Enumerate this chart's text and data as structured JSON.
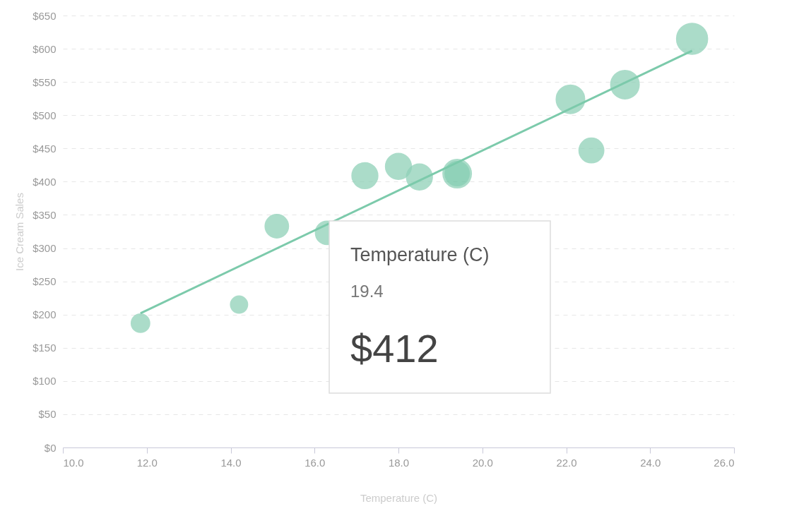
{
  "chart_data": {
    "type": "bubble",
    "xlabel": "Temperature (C)",
    "ylabel": "Ice Cream Sales",
    "xlim": [
      10,
      26
    ],
    "xticks": [
      {
        "value": 10,
        "label": "10.0"
      },
      {
        "value": 12,
        "label": "12.0"
      },
      {
        "value": 14,
        "label": "14.0"
      },
      {
        "value": 16,
        "label": "16.0"
      },
      {
        "value": 18,
        "label": "18.0"
      },
      {
        "value": 20,
        "label": "20.0"
      },
      {
        "value": 22,
        "label": "22.0"
      },
      {
        "value": 24,
        "label": "24.0"
      },
      {
        "value": 26,
        "label": "26.0"
      }
    ],
    "ylim": [
      0,
      650
    ],
    "yticks": [
      {
        "value": 0,
        "label": "$0"
      },
      {
        "value": 50,
        "label": "$50"
      },
      {
        "value": 100,
        "label": "$100"
      },
      {
        "value": 150,
        "label": "$150"
      },
      {
        "value": 200,
        "label": "$200"
      },
      {
        "value": 250,
        "label": "$250"
      },
      {
        "value": 300,
        "label": "$300"
      },
      {
        "value": 350,
        "label": "$350"
      },
      {
        "value": 400,
        "label": "$400"
      },
      {
        "value": 450,
        "label": "$450"
      },
      {
        "value": 500,
        "label": "$500"
      },
      {
        "value": 550,
        "label": "$550"
      },
      {
        "value": 600,
        "label": "$600"
      },
      {
        "value": 650,
        "label": "$650"
      }
    ],
    "grid": "y",
    "series": [
      {
        "color": "#8fd1b8",
        "x": [
          11.85,
          14.2,
          15.1,
          16.3,
          17.2,
          18.0,
          18.5,
          19.4,
          22.1,
          22.6,
          23.4,
          25.0
        ],
        "values": [
          187,
          215,
          333,
          323,
          409,
          423,
          407,
          412,
          524,
          447,
          546,
          615
        ],
        "sizes": [
          0.34,
          0.29,
          0.56,
          0.56,
          0.69,
          0.69,
          0.69,
          0.84,
          0.84,
          0.63,
          0.84,
          1
        ],
        "colors": [
          "#8fd1b8",
          "#8fd1b8",
          "#8fd1b8",
          "#8fd1b8",
          "#8fd1b8",
          "#8fd1b8",
          "#8fd1b8",
          "#6cc3a2",
          "#8fd1b8",
          "#8fd1b8",
          "#8fd1b8",
          "#8fd1b8"
        ]
      },
      {
        "type": "line",
        "color": "#7ccaab",
        "x": [
          11.85,
          25.0
        ],
        "values": [
          202,
          597
        ]
      }
    ],
    "annotations": [
      "Temperature (C)",
      "19.4",
      "$412"
    ]
  }
}
